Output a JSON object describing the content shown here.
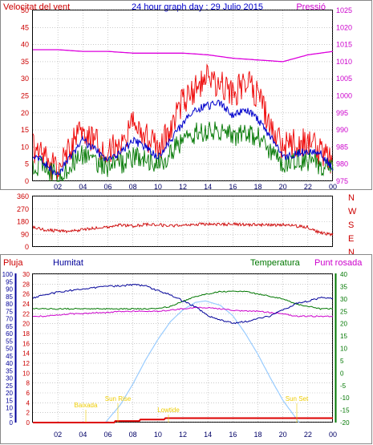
{
  "title": "24 hour graph day : 29 Julio 2015",
  "colors": {
    "wind": "#ee0000",
    "gust": "#ee0000",
    "avg": "#0000cc",
    "mean": "#007700",
    "pressure": "#dd00dd",
    "direction": "#cc0000",
    "humidity": "#000099",
    "temperature": "#007700",
    "dewpoint": "#cc00cc",
    "rain": "#dd0000",
    "solar": "#99ccff",
    "annotation": "#eecc00",
    "axis_wind": "#cc0000",
    "axis_pressure": "#cc00cc",
    "axis_rain": "#cc0000",
    "axis_humidity": "#000099",
    "axis_temperature": "#007700",
    "axis_dewpoint": "#cc00cc",
    "grid": "#aaaaaa"
  },
  "chart_data": [
    {
      "type": "line",
      "title": "24 hour graph day : 29 Julio 2015",
      "x_tick_labels": [
        "02",
        "04",
        "06",
        "08",
        "10",
        "12",
        "14",
        "16",
        "18",
        "20",
        "22",
        "00"
      ],
      "x_range_hours": [
        0,
        24
      ],
      "grid": true,
      "left_axis": {
        "label": "Velocitat del vent",
        "ylim": [
          0,
          50
        ],
        "ticks": [
          "0",
          "5",
          "10",
          "15",
          "20",
          "25",
          "30",
          "35",
          "40",
          "45",
          "50"
        ]
      },
      "right_axis": {
        "label": "Pressió",
        "ylim": [
          975,
          1025
        ],
        "ticks": [
          "975",
          "980",
          "985",
          "990",
          "995",
          "1000",
          "1005",
          "1010",
          "1015",
          "1020",
          "1025"
        ]
      },
      "series": [
        {
          "name": "wind_gust",
          "axis": "left",
          "x": [
            0,
            1,
            2,
            3,
            4,
            5,
            6,
            7,
            8,
            9,
            10,
            11,
            12,
            13,
            14,
            15,
            16,
            17,
            18,
            19,
            20,
            21,
            22,
            23,
            24
          ],
          "y": [
            10,
            6,
            3,
            10,
            15,
            12,
            8,
            11,
            18,
            13,
            9,
            15,
            24,
            27,
            30,
            28,
            25,
            30,
            25,
            16,
            10,
            11,
            11,
            9,
            5
          ]
        },
        {
          "name": "wind_avg",
          "axis": "left",
          "x": [
            0,
            1,
            2,
            3,
            4,
            5,
            6,
            7,
            8,
            9,
            10,
            11,
            12,
            13,
            14,
            15,
            16,
            17,
            18,
            19,
            20,
            21,
            22,
            23,
            24
          ],
          "y": [
            8,
            5,
            2,
            7,
            12,
            9,
            6,
            8,
            12,
            10,
            7,
            12,
            17,
            21,
            22,
            23,
            19,
            21,
            18,
            13,
            7,
            8,
            9,
            8,
            4
          ]
        },
        {
          "name": "wind_mean",
          "axis": "left",
          "x": [
            0,
            1,
            2,
            3,
            4,
            5,
            6,
            7,
            8,
            9,
            10,
            11,
            12,
            13,
            14,
            15,
            16,
            17,
            18,
            19,
            20,
            21,
            22,
            23,
            24
          ],
          "y": [
            5,
            4,
            1,
            5,
            8,
            6,
            4,
            5,
            7,
            7,
            5,
            8,
            12,
            14,
            15,
            15,
            13,
            14,
            13,
            9,
            5,
            6,
            6,
            5,
            3
          ]
        },
        {
          "name": "pressure",
          "axis": "right",
          "x": [
            0,
            2,
            4,
            6,
            8,
            10,
            12,
            14,
            16,
            18,
            20,
            22,
            24
          ],
          "y": [
            1013.5,
            1013.5,
            1013,
            1013,
            1012.5,
            1012.5,
            1012.5,
            1012,
            1011,
            1010.5,
            1010,
            1012,
            1013
          ]
        }
      ]
    },
    {
      "type": "scatter",
      "x_range_hours": [
        0,
        24
      ],
      "grid": true,
      "left_axis": {
        "ylim": [
          0,
          360
        ],
        "ticks": [
          "0",
          "90",
          "180",
          "270",
          "360"
        ]
      },
      "right_axis": {
        "labels": [
          "N",
          "W",
          "S",
          "E",
          "N"
        ]
      },
      "series": [
        {
          "name": "wind_direction",
          "x": [
            0,
            1,
            2,
            3,
            4,
            5,
            6,
            7,
            8,
            9,
            10,
            11,
            12,
            13,
            14,
            15,
            16,
            17,
            18,
            19,
            20,
            21,
            22,
            23,
            24
          ],
          "y": [
            140,
            120,
            115,
            110,
            125,
            135,
            145,
            155,
            150,
            160,
            158,
            150,
            158,
            160,
            165,
            160,
            162,
            158,
            160,
            155,
            158,
            150,
            140,
            100,
            90
          ]
        }
      ]
    },
    {
      "type": "line",
      "x_tick_labels": [
        "02",
        "04",
        "06",
        "08",
        "10",
        "12",
        "14",
        "16",
        "18",
        "20",
        "22",
        "00"
      ],
      "x_range_hours": [
        0,
        24
      ],
      "grid": true,
      "axis_labels": {
        "rain": "Pluja",
        "humidity": "Humitat",
        "temperature": "Temperatura",
        "dewpoint": "Punt rosada"
      },
      "rain_axis": {
        "ylim": [
          0,
          30
        ],
        "ticks": [
          "0",
          "2",
          "4",
          "6",
          "8",
          "10",
          "12",
          "14",
          "16",
          "18",
          "20",
          "22",
          "24",
          "26",
          "28",
          "30"
        ]
      },
      "humidity_axis": {
        "ylim": [
          0,
          100
        ],
        "ticks": [
          "0",
          "5",
          "10",
          "15",
          "20",
          "25",
          "30",
          "35",
          "40",
          "45",
          "50",
          "55",
          "60",
          "65",
          "70",
          "75",
          "80",
          "85",
          "90",
          "95",
          "100"
        ]
      },
      "temperature_axis": {
        "ylim": [
          -20,
          40
        ],
        "ticks": [
          "-20",
          "-15",
          "-10",
          "-5",
          "0",
          "5",
          "10",
          "15",
          "20",
          "25",
          "30",
          "35",
          "40"
        ]
      },
      "annotations": [
        "Baixada",
        "Sun Rise",
        "Lowtide",
        "Sun Set"
      ],
      "series": [
        {
          "name": "humidity",
          "x": [
            0,
            1,
            2,
            3,
            4,
            5,
            6,
            7,
            8,
            9,
            10,
            11,
            12,
            13,
            14,
            15,
            16,
            17,
            18,
            19,
            20,
            21,
            22,
            23,
            24
          ],
          "y": [
            84,
            86,
            88,
            89,
            90,
            91,
            92,
            92,
            93,
            92,
            89,
            86,
            82,
            78,
            72,
            69,
            67,
            68,
            70,
            72,
            76,
            80,
            82,
            84,
            84
          ]
        },
        {
          "name": "temperature",
          "x": [
            0,
            1,
            2,
            3,
            4,
            5,
            6,
            7,
            8,
            9,
            10,
            11,
            12,
            13,
            14,
            15,
            16,
            17,
            18,
            19,
            20,
            21,
            22,
            23,
            24
          ],
          "y": [
            26,
            26,
            26,
            26,
            26,
            26,
            26,
            26,
            26,
            26,
            26,
            27,
            29,
            31,
            32,
            33,
            33,
            33,
            32,
            31,
            30,
            28,
            27,
            26,
            26
          ]
        },
        {
          "name": "dewpoint",
          "x": [
            0,
            1,
            2,
            3,
            4,
            5,
            6,
            7,
            8,
            9,
            10,
            11,
            12,
            13,
            14,
            15,
            16,
            17,
            18,
            19,
            20,
            21,
            22,
            23,
            24
          ],
          "y": [
            23,
            23,
            23.5,
            24,
            24,
            24.5,
            24.5,
            25,
            25,
            25,
            25,
            25.5,
            26,
            26.5,
            26.5,
            26,
            25.5,
            25,
            25,
            24.5,
            24,
            23,
            23,
            23,
            23
          ]
        },
        {
          "name": "solar",
          "x": [
            5.8,
            7,
            8,
            9,
            10,
            11,
            12,
            13,
            13.8,
            15,
            16,
            17,
            18,
            19,
            20,
            21.3
          ],
          "y": [
            0,
            12,
            26,
            42,
            56,
            68,
            76,
            81,
            82,
            79,
            72,
            60,
            46,
            30,
            15,
            0
          ]
        },
        {
          "name": "rain",
          "x": [
            0,
            6.5,
            6.6,
            8.5,
            8.6,
            10.5,
            10.6,
            24
          ],
          "y": [
            0,
            0,
            0.3,
            0.3,
            0.6,
            0.6,
            0.9,
            0.9
          ]
        }
      ]
    }
  ]
}
